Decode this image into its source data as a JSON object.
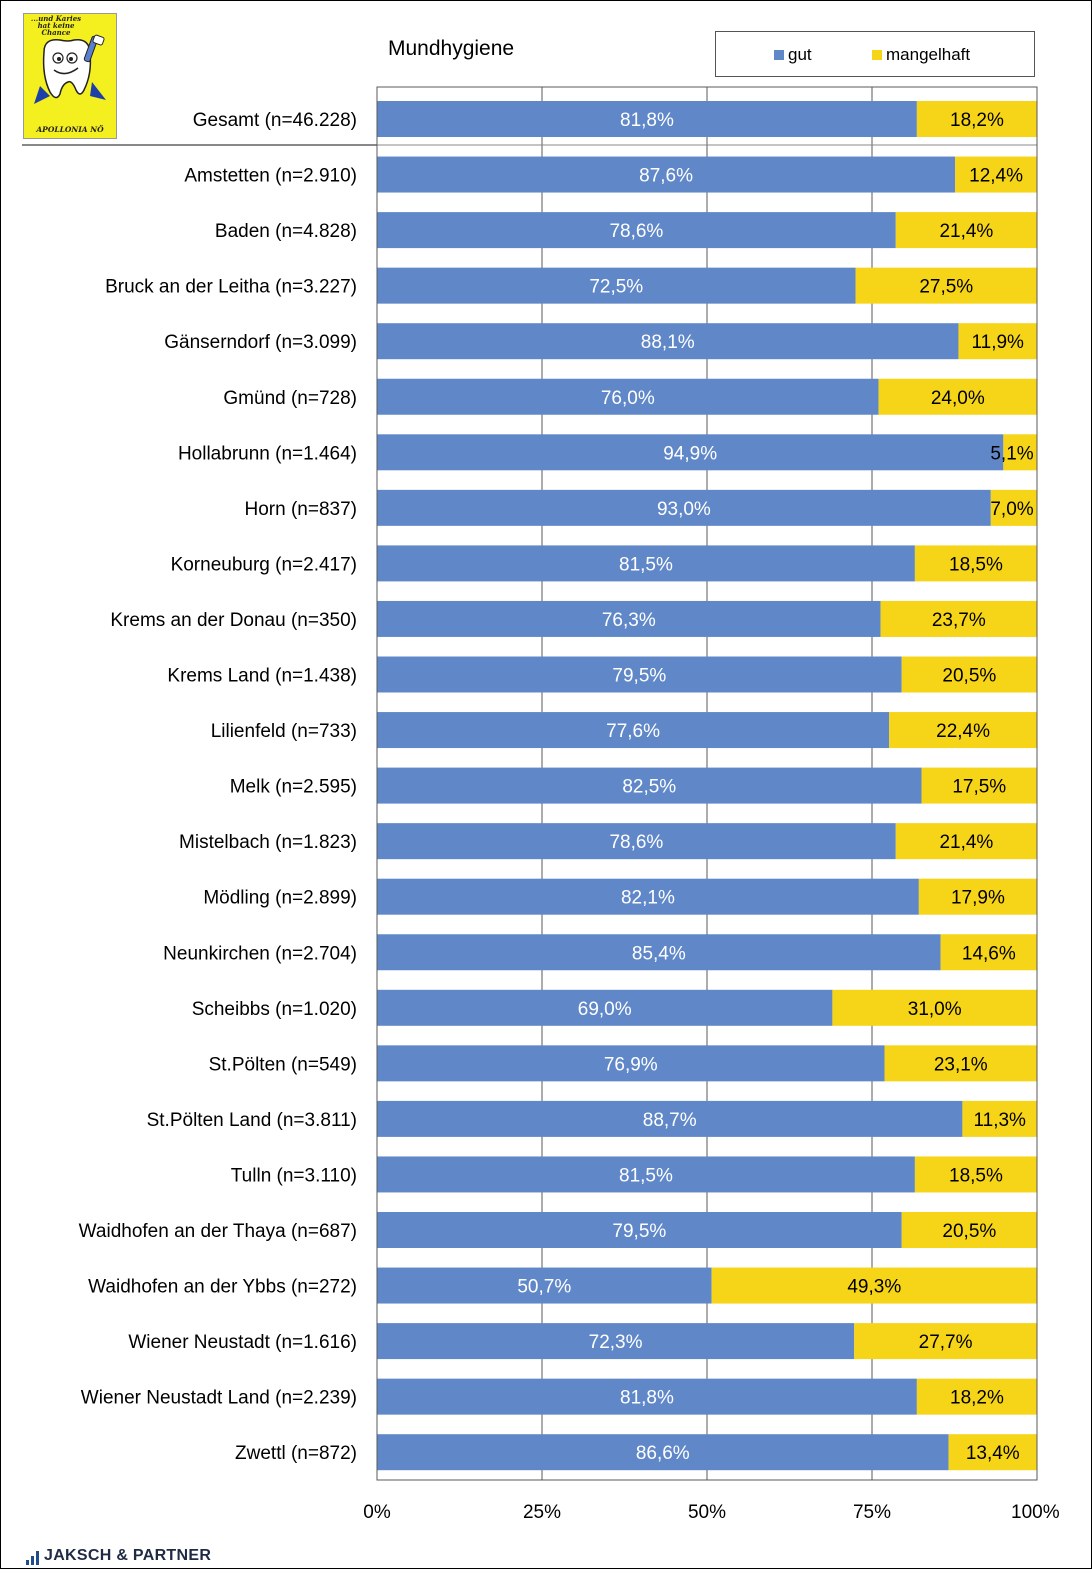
{
  "logo": {
    "tagline": "...und Karies hat keine Chance",
    "brand": "APOLLONIA NÖ"
  },
  "footer": {
    "company": "JAKSCH & PARTNER"
  },
  "colors": {
    "gut": "#6088c9",
    "mangelhaft": "#f6d417",
    "grid": "#595959"
  },
  "chart_data": {
    "type": "bar",
    "orientation": "horizontal",
    "stacked": true,
    "title": "Mundhygiene",
    "xlim": [
      0,
      100
    ],
    "xticks": [
      "0%",
      "25%",
      "50%",
      "75%",
      "100%"
    ],
    "legend": {
      "position": "top-right",
      "entries": [
        "gut",
        "mangelhaft"
      ]
    },
    "grid": true,
    "categories": [
      "Gesamt (n=46.228)",
      "Amstetten (n=2.910)",
      "Baden (n=4.828)",
      "Bruck an der Leitha (n=3.227)",
      "Gänserndorf (n=3.099)",
      "Gmünd (n=728)",
      "Hollabrunn (n=1.464)",
      "Horn (n=837)",
      "Korneuburg (n=2.417)",
      "Krems an der Donau (n=350)",
      "Krems Land (n=1.438)",
      "Lilienfeld (n=733)",
      "Melk (n=2.595)",
      "Mistelbach (n=1.823)",
      "Mödling (n=2.899)",
      "Neunkirchen (n=2.704)",
      "Scheibbs (n=1.020)",
      "St.Pölten (n=549)",
      "St.Pölten Land (n=3.811)",
      "Tulln (n=3.110)",
      "Waidhofen an der Thaya (n=687)",
      "Waidhofen an der Ybbs (n=272)",
      "Wiener Neustadt (n=1.616)",
      "Wiener Neustadt Land (n=2.239)",
      "Zwettl (n=872)"
    ],
    "series": [
      {
        "name": "gut",
        "values": [
          81.8,
          87.6,
          78.6,
          72.5,
          88.1,
          76.0,
          94.9,
          93.0,
          81.5,
          76.3,
          79.5,
          77.6,
          82.5,
          78.6,
          82.1,
          85.4,
          69.0,
          76.9,
          88.7,
          81.5,
          79.5,
          50.7,
          72.3,
          81.8,
          86.6
        ],
        "labels": [
          "81,8%",
          "87,6%",
          "78,6%",
          "72,5%",
          "88,1%",
          "76,0%",
          "94,9%",
          "93,0%",
          "81,5%",
          "76,3%",
          "79,5%",
          "77,6%",
          "82,5%",
          "78,6%",
          "82,1%",
          "85,4%",
          "69,0%",
          "76,9%",
          "88,7%",
          "81,5%",
          "79,5%",
          "50,7%",
          "72,3%",
          "81,8%",
          "86,6%"
        ]
      },
      {
        "name": "mangelhaft",
        "values": [
          18.2,
          12.4,
          21.4,
          27.5,
          11.9,
          24.0,
          5.1,
          7.0,
          18.5,
          23.7,
          20.5,
          22.4,
          17.5,
          21.4,
          17.9,
          14.6,
          31.0,
          23.1,
          11.3,
          18.5,
          20.5,
          49.3,
          27.7,
          18.2,
          13.4
        ],
        "labels": [
          "18,2%",
          "12,4%",
          "21,4%",
          "27,5%",
          "11,9%",
          "24,0%",
          "5,1%",
          "7,0%",
          "18,5%",
          "23,7%",
          "20,5%",
          "22,4%",
          "17,5%",
          "21,4%",
          "17,9%",
          "14,6%",
          "31,0%",
          "23,1%",
          "11,3%",
          "18,5%",
          "20,5%",
          "49,3%",
          "27,7%",
          "18,2%",
          "13,4%"
        ]
      }
    ]
  }
}
